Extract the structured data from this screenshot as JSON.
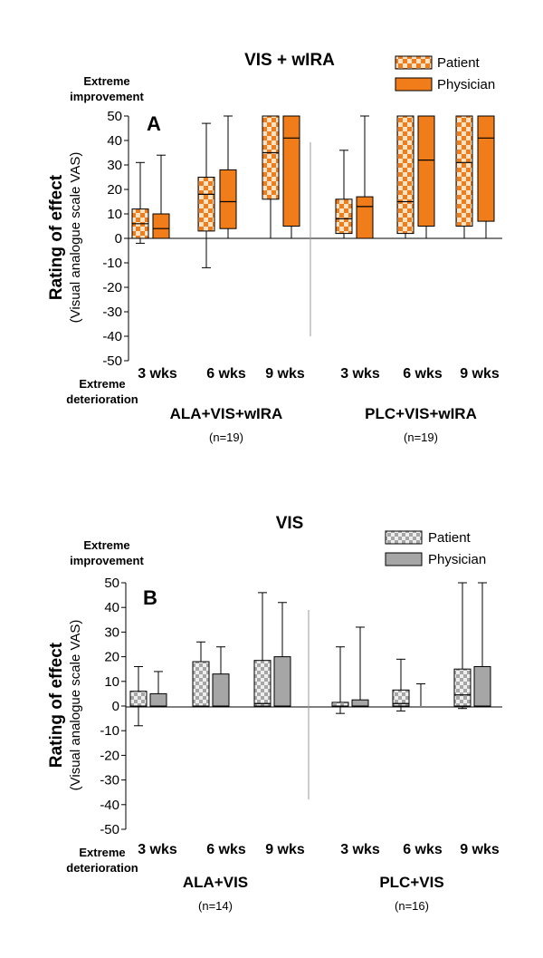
{
  "chart_data": [
    {
      "type": "box",
      "panel": "A",
      "title": "VIS + wIRA",
      "ylabel": "Rating of effect",
      "ylabel_sub": "(Visual analogue scale VAS)",
      "top_label": [
        "Extreme",
        "improvement"
      ],
      "bottom_label": [
        "Extreme",
        "deterioration"
      ],
      "ylim": [
        -50,
        50
      ],
      "yticks": [
        50,
        40,
        30,
        20,
        10,
        0,
        -10,
        -20,
        -30,
        -40,
        -50
      ],
      "time_labels": [
        "3 wks",
        "6 wks",
        "9 wks"
      ],
      "legend": [
        "Patient",
        "Physician"
      ],
      "colors": {
        "fill": "#f07d1a",
        "pattern_bg": "#fbe3c8"
      },
      "groups": [
        {
          "name": "ALA+VIS+wIRA",
          "n": "(n=19)",
          "boxes": [
            {
              "time": "3 wks",
              "rater": "Patient",
              "min": -2,
              "q1": 0,
              "median": 6,
              "q3": 12,
              "max": 31
            },
            {
              "time": "3 wks",
              "rater": "Physician",
              "min": 0,
              "q1": 0,
              "median": 4,
              "q3": 10,
              "max": 34
            },
            {
              "time": "6 wks",
              "rater": "Patient",
              "min": -12,
              "q1": 3,
              "median": 18,
              "q3": 25,
              "max": 47
            },
            {
              "time": "6 wks",
              "rater": "Physician",
              "min": 0,
              "q1": 4,
              "median": 15,
              "q3": 28,
              "max": 50
            },
            {
              "time": "9 wks",
              "rater": "Patient",
              "min": 0,
              "q1": 16,
              "median": 35,
              "q3": 50,
              "max": 50
            },
            {
              "time": "9 wks",
              "rater": "Physician",
              "min": 0,
              "q1": 5,
              "median": 41,
              "q3": 50,
              "max": 50
            }
          ]
        },
        {
          "name": "PLC+VIS+wIRA",
          "n": "(n=19)",
          "boxes": [
            {
              "time": "3 wks",
              "rater": "Patient",
              "min": 0,
              "q1": 2,
              "median": 8,
              "q3": 16,
              "max": 36
            },
            {
              "time": "3 wks",
              "rater": "Physician",
              "min": 0,
              "q1": 0,
              "median": 13,
              "q3": 17,
              "max": 50
            },
            {
              "time": "6 wks",
              "rater": "Patient",
              "min": 0,
              "q1": 2,
              "median": 15,
              "q3": 50,
              "max": 50
            },
            {
              "time": "6 wks",
              "rater": "Physician",
              "min": 0,
              "q1": 5,
              "median": 32,
              "q3": 50,
              "max": 50
            },
            {
              "time": "9 wks",
              "rater": "Patient",
              "min": 0,
              "q1": 5,
              "median": 31,
              "q3": 50,
              "max": 50
            },
            {
              "time": "9 wks",
              "rater": "Physician",
              "min": 0,
              "q1": 7,
              "median": 41,
              "q3": 50,
              "max": 50
            }
          ]
        }
      ]
    },
    {
      "type": "box",
      "panel": "B",
      "title": "VIS",
      "ylabel": "Rating of effect",
      "ylabel_sub": "(Visual analogue scale VAS)",
      "top_label": [
        "Extreme",
        "improvement"
      ],
      "bottom_label": [
        "Extreme",
        "deterioration"
      ],
      "ylim": [
        -50,
        50
      ],
      "yticks": [
        50,
        40,
        30,
        20,
        10,
        0,
        -10,
        -20,
        -30,
        -40,
        -50
      ],
      "time_labels": [
        "3 wks",
        "6 wks",
        "9 wks"
      ],
      "legend": [
        "Patient",
        "Physician"
      ],
      "colors": {
        "fill": "#a6a6a6",
        "pattern_bg": "#eeeeee"
      },
      "groups": [
        {
          "name": "ALA+VIS",
          "n": "(n=14)",
          "boxes": [
            {
              "time": "3 wks",
              "rater": "Patient",
              "min": -8,
              "q1": 0,
              "median": 0,
              "q3": 6,
              "max": 16
            },
            {
              "time": "3 wks",
              "rater": "Physician",
              "min": 0,
              "q1": 0,
              "median": 0,
              "q3": 5,
              "max": 14
            },
            {
              "time": "6 wks",
              "rater": "Patient",
              "min": 0,
              "q1": 0,
              "median": 0,
              "q3": 18,
              "max": 26
            },
            {
              "time": "6 wks",
              "rater": "Physician",
              "min": 0,
              "q1": 0,
              "median": 0,
              "q3": 13,
              "max": 24
            },
            {
              "time": "9 wks",
              "rater": "Patient",
              "min": 0,
              "q1": 0,
              "median": 1,
              "q3": 18.5,
              "max": 46
            },
            {
              "time": "9 wks",
              "rater": "Physician",
              "min": 0,
              "q1": 0,
              "median": 0,
              "q3": 20,
              "max": 42
            }
          ]
        },
        {
          "name": "PLC+VIS",
          "n": "(n=16)",
          "boxes": [
            {
              "time": "3 wks",
              "rater": "Patient",
              "min": -3,
              "q1": 0,
              "median": 0,
              "q3": 1.5,
              "max": 24
            },
            {
              "time": "3 wks",
              "rater": "Physician",
              "min": 0,
              "q1": 0,
              "median": 0,
              "q3": 2.5,
              "max": 32
            },
            {
              "time": "6 wks",
              "rater": "Patient",
              "min": -2,
              "q1": 0,
              "median": 1,
              "q3": 6.5,
              "max": 19
            },
            {
              "time": "6 wks",
              "rater": "Physician",
              "min": 0,
              "q1": 0,
              "median": 0,
              "q3": 0,
              "max": 9
            },
            {
              "time": "9 wks",
              "rater": "Patient",
              "min": -1,
              "q1": 0,
              "median": 4.5,
              "q3": 15,
              "max": 50
            },
            {
              "time": "9 wks",
              "rater": "Physician",
              "min": 0,
              "q1": 0,
              "median": 0,
              "q3": 16,
              "max": 50
            }
          ]
        }
      ]
    }
  ]
}
